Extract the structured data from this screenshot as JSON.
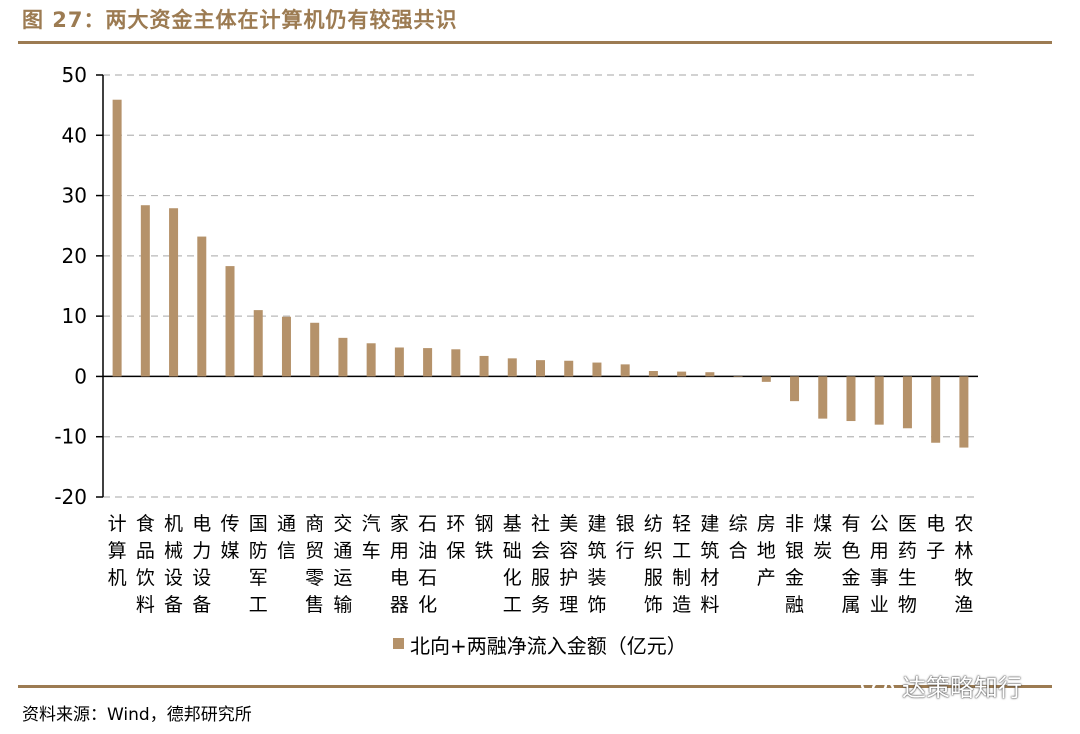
{
  "header": {
    "figure_title": "图 27：两大资金主体在计算机仍有较强共识"
  },
  "footer": {
    "source": "资料来源：Wind，德邦研究所",
    "watermark": "达策略知行",
    "watermark_icon": "wechat-icon"
  },
  "colors": {
    "accent": "#9c7b52",
    "bar": "#b5926a",
    "grid": "#b8b8b8"
  },
  "chart_data": {
    "type": "bar",
    "title": "",
    "xlabel": "",
    "ylabel": "",
    "ylim": [
      -20,
      50
    ],
    "yticks": [
      "50",
      "40",
      "30",
      "20",
      "10",
      "0",
      "-10",
      "-20"
    ],
    "grid": true,
    "legend_position": "bottom-center",
    "categories": [
      "计算机",
      "食品饮料",
      "机械设备",
      "电力设备",
      "传媒",
      "国防军工",
      "通信",
      "商贸零售",
      "交通运输",
      "汽车",
      "家用电器",
      "石油石化",
      "环保",
      "钢铁",
      "基础化工",
      "社会服务",
      "美容护理",
      "建筑装饰",
      "银行",
      "纺织服饰",
      "轻工制造",
      "建筑材料",
      "综合",
      "房地产",
      "非银金融",
      "煤炭",
      "有色金属",
      "公用事业",
      "医药生物",
      "电子",
      "农林牧渔"
    ],
    "series": [
      {
        "name": "北向+两融净流入金额（亿元）",
        "values": [
          45.9,
          28.4,
          27.9,
          23.2,
          18.3,
          11.0,
          9.9,
          8.9,
          6.4,
          5.5,
          4.8,
          4.7,
          4.5,
          3.4,
          3.0,
          2.7,
          2.6,
          2.3,
          2.0,
          0.9,
          0.8,
          0.7,
          -0.1,
          -0.9,
          -4.1,
          -7.0,
          -7.4,
          -8.0,
          -8.6,
          -11.0,
          -11.8
        ]
      }
    ]
  }
}
